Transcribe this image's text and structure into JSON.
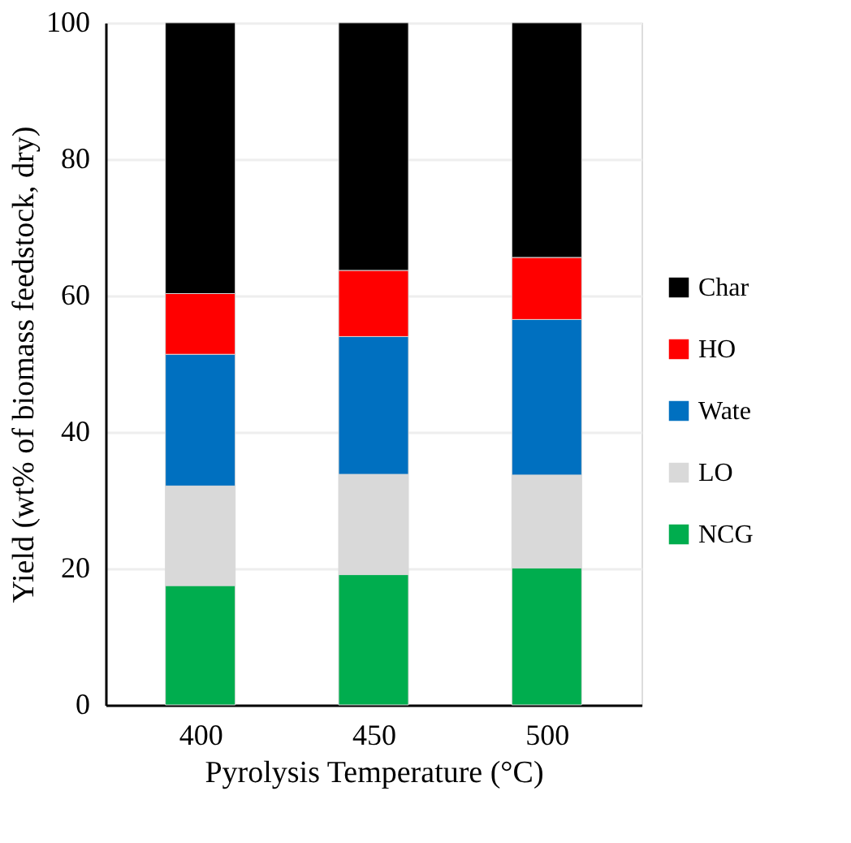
{
  "chart_data": {
    "type": "bar",
    "stacked": true,
    "xlabel": "Pyrolysis Temperature (°C)",
    "ylabel": "Yield (wt% of biomass feedstock, dry)",
    "categories": [
      "400",
      "450",
      "500"
    ],
    "series": [
      {
        "name": "NCG",
        "color": "#00ad4e",
        "values": [
          17.5,
          19.1,
          20.1
        ]
      },
      {
        "name": "LO",
        "color": "#d9d9d9",
        "values": [
          14.6,
          14.7,
          13.6
        ]
      },
      {
        "name": "Wate",
        "color": "#0070c0",
        "values": [
          19.3,
          20.2,
          22.8
        ]
      },
      {
        "name": "HO",
        "color": "#ff0000",
        "values": [
          8.9,
          9.7,
          9.1
        ]
      },
      {
        "name": "Char",
        "color": "#000000",
        "values": [
          39.7,
          36.3,
          34.4
        ]
      }
    ],
    "ylim": [
      0,
      100
    ],
    "yticks": [
      0,
      20,
      40,
      60,
      80,
      100
    ],
    "grid": "y",
    "legend": "right"
  }
}
